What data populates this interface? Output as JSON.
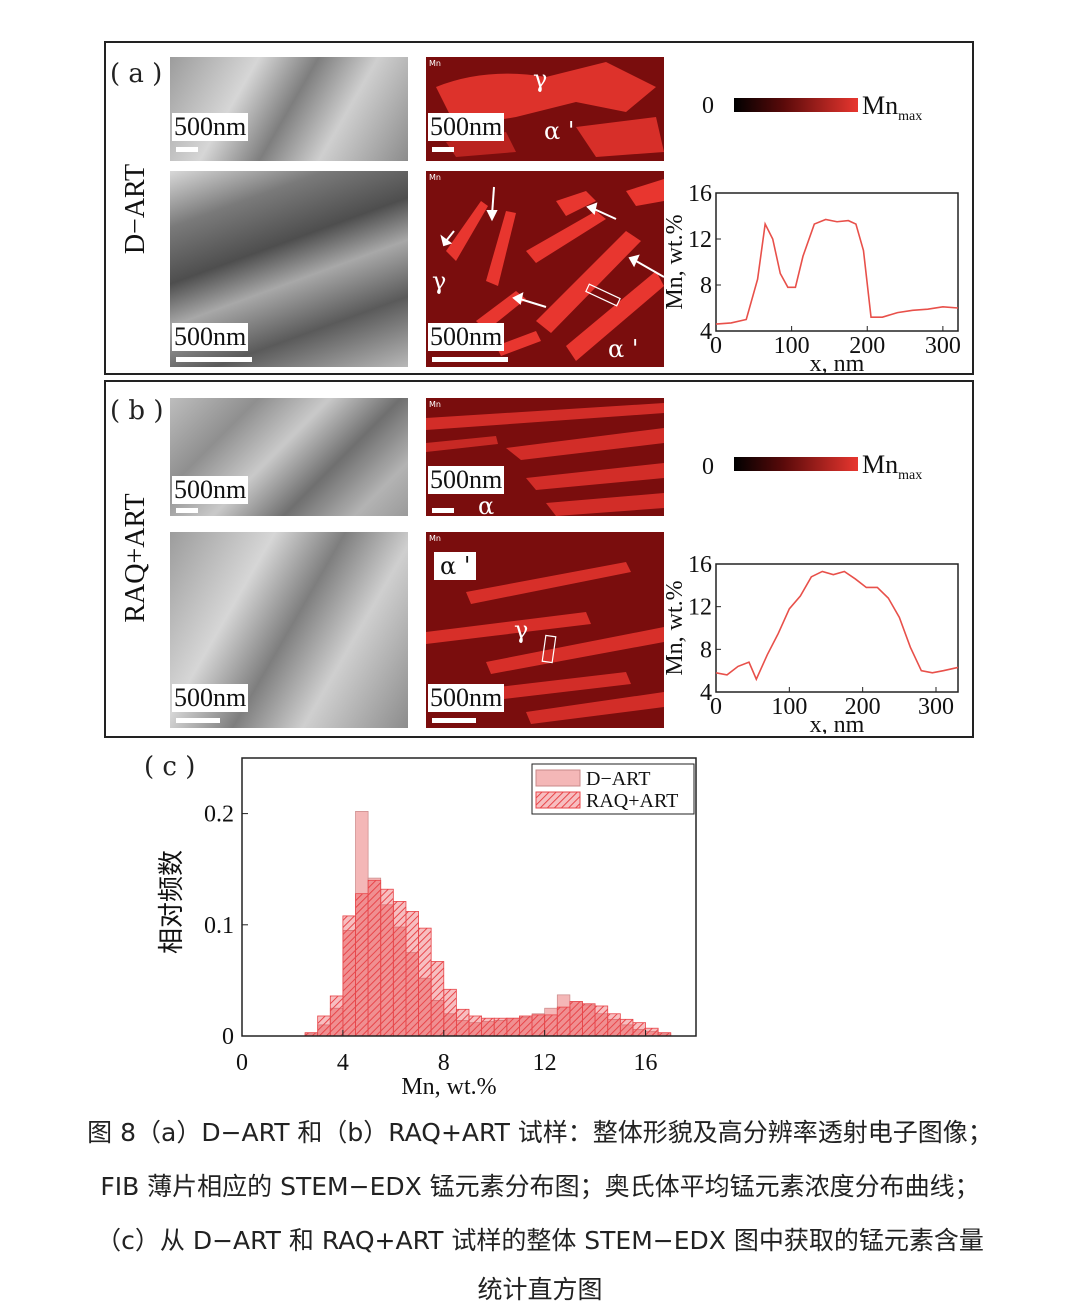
{
  "panel_a": {
    "tag": "( a )",
    "row_label": "D−ART",
    "scale_labels": [
      "500nm",
      "500nm",
      "500nm",
      "500nm"
    ],
    "phase_labels": {
      "gamma_top": "γ",
      "alpha_top": "α '",
      "gamma_bottom": "γ",
      "alpha_bottom": "α '"
    },
    "edx_tag": "Mn",
    "colorbar": {
      "min": "0",
      "max_base": "Mn",
      "max_sub": "max"
    },
    "profile": {
      "ylabel": "Mn,  wt.%",
      "xlabel": "x,  nm",
      "yticks": [
        "4",
        "8",
        "12",
        "16"
      ],
      "xticks": [
        "0",
        "100",
        "200",
        "300"
      ]
    }
  },
  "panel_b": {
    "tag": "( b )",
    "row_label": "RAQ+ART",
    "scale_labels": [
      "500nm",
      "500nm",
      "500nm",
      "500nm"
    ],
    "phase_labels": {
      "alpha_top": "α",
      "alpha_bottom": "α '",
      "gamma_bottom": "γ"
    },
    "edx_tag": "Mn",
    "colorbar": {
      "min": "0",
      "max_base": "Mn",
      "max_sub": "max"
    },
    "profile": {
      "ylabel": "Mn,  wt.%",
      "xlabel": "x,  nm",
      "yticks": [
        "4",
        "8",
        "12",
        "16"
      ],
      "xticks": [
        "0",
        "100",
        "200",
        "300"
      ]
    }
  },
  "panel_c": {
    "tag": "( c )",
    "ylabel": "相对频数",
    "xlabel": "Mn,  wt.%",
    "yticks": [
      "0",
      "0.1",
      "0.2"
    ],
    "xticks": [
      "0",
      "4",
      "8",
      "12",
      "16"
    ],
    "legend": [
      "D−ART",
      "RAQ+ART"
    ]
  },
  "caption": {
    "line1": "图 8（a）D−ART 和（b）RAQ+ART 试样：整体形貌及高分辨率透射电子图像；",
    "line2": "FIB 薄片相应的 STEM−EDX 锰元素分布图；奥氏体平均锰元素浓度分布曲线；",
    "line3": "（c）从 D−ART 和 RAQ+ART 试样的整体 STEM−EDX 图中获取的锰元素含量",
    "line4": "统计直方图"
  },
  "colors": {
    "profile_line": "#e8504a",
    "hist_d_art": "#f4b7b7",
    "hist_raq": "#e8464a",
    "edx_bg": "#7a0d0d",
    "edx_fg": "#e8362f"
  },
  "chart_data": [
    {
      "type": "line",
      "xlabel": "x,  nm",
      "ylabel": "Mn,  wt.%",
      "xlim": [
        0,
        320
      ],
      "ylim": [
        4,
        16
      ],
      "series": [
        {
          "x": [
            0,
            20,
            40,
            55,
            65,
            75,
            85,
            95,
            105,
            115,
            130,
            145,
            160,
            175,
            185,
            195,
            205,
            220,
            240,
            260,
            280,
            300,
            320
          ],
          "y": [
            4.6,
            4.7,
            5.0,
            8.5,
            13.3,
            12.0,
            9.0,
            7.8,
            7.8,
            10.5,
            13.3,
            13.7,
            13.5,
            13.6,
            13.3,
            11.0,
            5.2,
            5.2,
            5.6,
            5.8,
            5.9,
            6.1,
            6.0
          ]
        }
      ]
    },
    {
      "type": "line",
      "xlabel": "x,  nm",
      "ylabel": "Mn,  wt.%",
      "xlim": [
        0,
        330
      ],
      "ylim": [
        4,
        16
      ],
      "series": [
        {
          "x": [
            0,
            15,
            30,
            45,
            55,
            70,
            85,
            100,
            115,
            130,
            145,
            160,
            175,
            190,
            205,
            220,
            235,
            250,
            265,
            280,
            295,
            310,
            330
          ],
          "y": [
            5.8,
            5.6,
            6.4,
            6.8,
            5.2,
            7.5,
            9.5,
            11.8,
            13.0,
            14.8,
            15.3,
            15.0,
            15.3,
            14.6,
            13.8,
            13.8,
            12.8,
            11.0,
            8.2,
            6.0,
            5.8,
            6.0,
            6.3
          ]
        }
      ]
    },
    {
      "type": "bar",
      "xlabel": "Mn,  wt.%",
      "ylabel": "相对频数",
      "xlim": [
        0,
        18
      ],
      "ylim": [
        0,
        0.25
      ],
      "bin_start": 2.5,
      "bin_width": 0.5,
      "series": [
        {
          "name": "D−ART",
          "values": [
            0.002,
            0.01,
            0.025,
            0.095,
            0.202,
            0.142,
            0.118,
            0.098,
            0.075,
            0.052,
            0.032,
            0.02,
            0.014,
            0.012,
            0.013,
            0.014,
            0.016,
            0.017,
            0.02,
            0.025,
            0.037,
            0.031,
            0.028,
            0.02,
            0.015,
            0.01,
            0.006,
            0.004,
            0.002
          ]
        },
        {
          "name": "RAQ+ART",
          "values": [
            0.003,
            0.018,
            0.036,
            0.108,
            0.128,
            0.14,
            0.132,
            0.121,
            0.112,
            0.097,
            0.067,
            0.042,
            0.024,
            0.018,
            0.016,
            0.016,
            0.016,
            0.018,
            0.019,
            0.019,
            0.026,
            0.031,
            0.029,
            0.027,
            0.02,
            0.015,
            0.012,
            0.007,
            0.003
          ]
        }
      ]
    }
  ]
}
